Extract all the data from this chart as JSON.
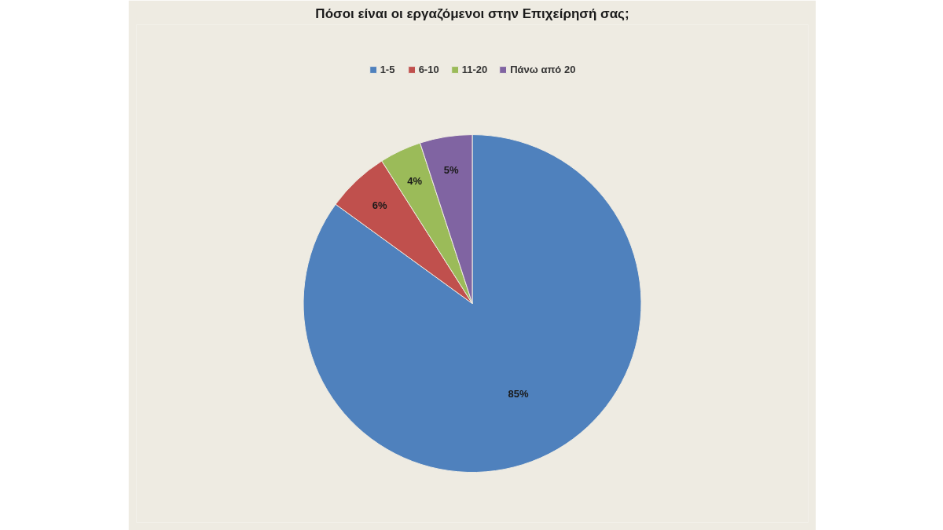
{
  "chart_data": {
    "type": "pie",
    "title": "Πόσοι είναι οι εργαζόμενοι στην Επιχείρησή σας;",
    "categories": [
      "1-5",
      "6-10",
      "11-20",
      "Πάνω από 20"
    ],
    "values": [
      85,
      6,
      4,
      5
    ],
    "colors": [
      "#4f81bd",
      "#c0504d",
      "#9bbb59",
      "#8064a2"
    ],
    "value_labels": [
      "85%",
      "6%",
      "4%",
      "5%"
    ],
    "legend": "top"
  }
}
